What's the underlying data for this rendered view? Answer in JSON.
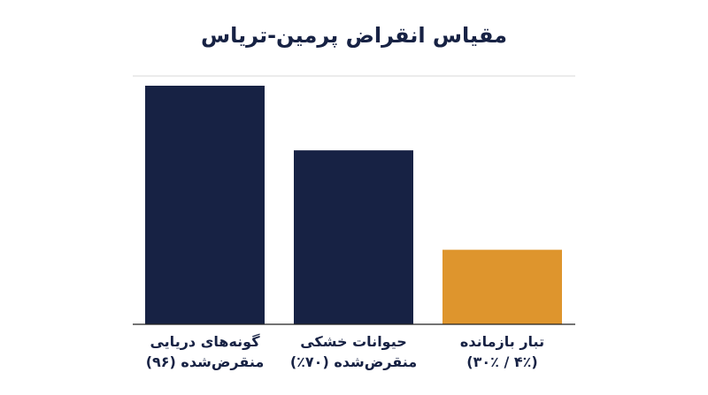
{
  "chart_data": {
    "type": "bar",
    "title": "مقیاس انقراض پرمین-تریاس",
    "categories": [
      [
        "گونه‌های دریایی",
        "منقرض‌شده (۹۶)"
      ],
      [
        "حیوانات خشکی",
        "منقرض‌شده (۷۰٪)"
      ],
      [
        "تبار بازمانده",
        "(۴٪ / ۳۰٪)"
      ]
    ],
    "values": [
      96,
      70,
      30
    ],
    "bar_colors": [
      "#172244",
      "#172244",
      "#DE952D"
    ],
    "ylim": [
      0,
      96
    ],
    "grid": false,
    "text_color": "#172244",
    "axis_line_color": "#D9D9D9"
  }
}
